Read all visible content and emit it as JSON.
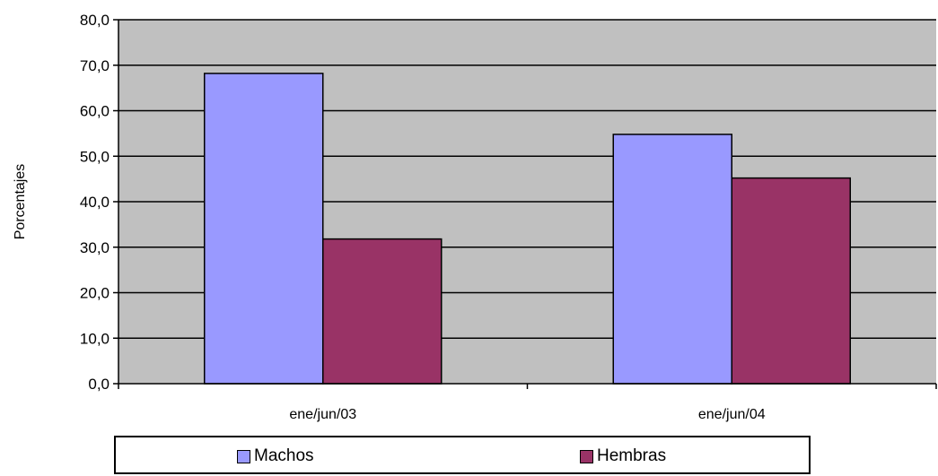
{
  "chart_data": {
    "type": "bar",
    "title": "",
    "xlabel": "",
    "ylabel": "Porcentajes",
    "categories": [
      "ene/jun/03",
      "ene/jun/04"
    ],
    "series": [
      {
        "name": "Machos",
        "values": [
          68.2,
          54.8
        ],
        "color": "#9999ff"
      },
      {
        "name": "Hembras",
        "values": [
          31.8,
          45.2
        ],
        "color": "#993366"
      }
    ],
    "ylim": [
      0,
      80
    ],
    "yticks": [
      "0,0",
      "10,0",
      "20,0",
      "30,0",
      "40,0",
      "50,0",
      "60,0",
      "70,0",
      "80,0"
    ],
    "grid": true,
    "plot_background": "#c0c0c0",
    "legend": "bottom"
  }
}
